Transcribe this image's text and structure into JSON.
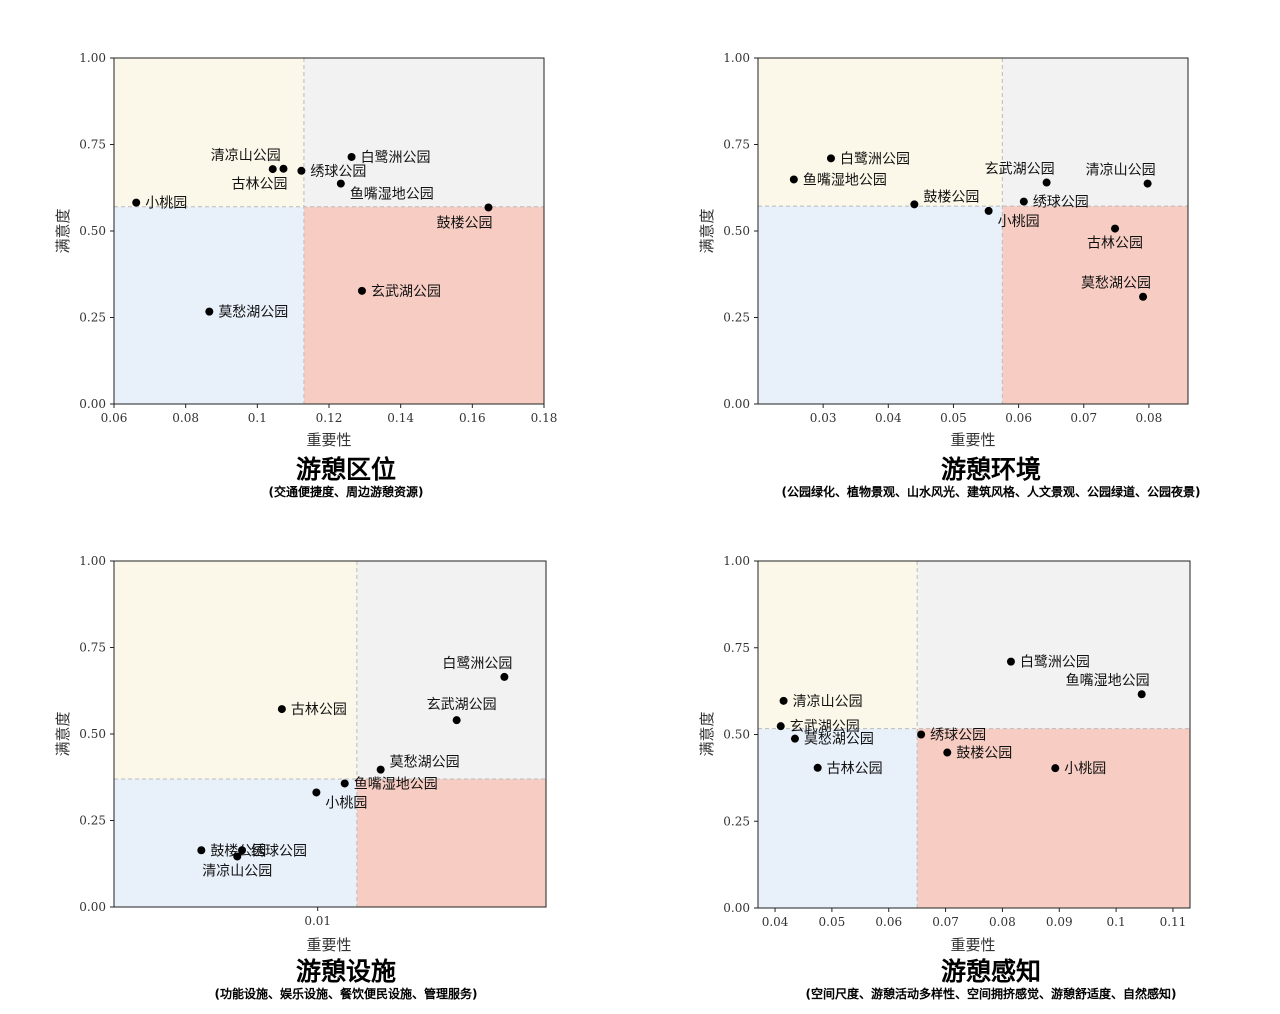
{
  "colors": {
    "q_top_left": "#fcf8e9",
    "q_top_right": "#f2f2f2",
    "q_bottom_left": "#e8f0fa",
    "q_bottom_right": "#f7cdc3",
    "point": "#000000",
    "divider": "#bbbbbb"
  },
  "chart_data": [
    {
      "type": "scatter",
      "title": "游憩区位",
      "subtitle": "(交通便捷度、周边游憩资源)",
      "xlabel": "重要性",
      "ylabel": "满意度",
      "xlim": [
        0.06,
        0.18
      ],
      "ylim": [
        0,
        1
      ],
      "xticks": [
        0.06,
        0.08,
        0.1,
        0.12,
        0.14,
        0.16,
        0.18
      ],
      "xtick_labels": [
        "0.06",
        "0.08",
        "0.1",
        "0.12",
        "0.14",
        "0.16",
        "0.18"
      ],
      "yticks": [
        0,
        0.25,
        0.5,
        0.75,
        1
      ],
      "ytick_labels": [
        "0.00",
        "0.25",
        "0.50",
        "0.75",
        "1.00"
      ],
      "x_split": 0.113,
      "y_split": 0.57,
      "points": [
        {
          "name": "小桃园",
          "x": 0.0662,
          "y": 0.582,
          "label_pos": "right"
        },
        {
          "name": "清凉山公园",
          "x": 0.1043,
          "y": 0.679,
          "label_pos": "above-left"
        },
        {
          "name": "古林公园",
          "x": 0.1073,
          "y": 0.68,
          "label_pos": "below-left"
        },
        {
          "name": "绣球公园",
          "x": 0.1123,
          "y": 0.674,
          "label_pos": "right"
        },
        {
          "name": "白鹭洲公园",
          "x": 0.1263,
          "y": 0.714,
          "label_pos": "right"
        },
        {
          "name": "鱼嘴湿地公园",
          "x": 0.1233,
          "y": 0.637,
          "label_pos": "right-below"
        },
        {
          "name": "鼓楼公园",
          "x": 0.1645,
          "y": 0.568,
          "label_pos": "below-left"
        },
        {
          "name": "玄武湖公园",
          "x": 0.1292,
          "y": 0.327,
          "label_pos": "right"
        },
        {
          "name": "莫愁湖公园",
          "x": 0.0866,
          "y": 0.267,
          "label_pos": "right"
        }
      ]
    },
    {
      "type": "scatter",
      "title": "游憩环境",
      "subtitle": "(公园绿化、植物景观、山水风光、建筑风格、人文景观、公园绿道、公园夜景)",
      "xlabel": "重要性",
      "ylabel": "满意度",
      "xlim": [
        0.02,
        0.086
      ],
      "ylim": [
        0,
        1
      ],
      "xticks": [
        0.03,
        0.04,
        0.05,
        0.06,
        0.07,
        0.08
      ],
      "xtick_labels": [
        "0.03",
        "0.04",
        "0.05",
        "0.06",
        "0.07",
        "0.08"
      ],
      "yticks": [
        0,
        0.25,
        0.5,
        0.75,
        1
      ],
      "ytick_labels": [
        "0.00",
        "0.25",
        "0.50",
        "0.75",
        "1.00"
      ],
      "x_split": 0.0575,
      "y_split": 0.572,
      "points": [
        {
          "name": "白鹭洲公园",
          "x": 0.0312,
          "y": 0.71,
          "label_pos": "right"
        },
        {
          "name": "鱼嘴湿地公园",
          "x": 0.0255,
          "y": 0.649,
          "label_pos": "right"
        },
        {
          "name": "鼓楼公园",
          "x": 0.044,
          "y": 0.577,
          "label_pos": "right-above"
        },
        {
          "name": "小桃园",
          "x": 0.0554,
          "y": 0.558,
          "label_pos": "right-below"
        },
        {
          "name": "玄武湖公园",
          "x": 0.0643,
          "y": 0.64,
          "label_pos": "above-left"
        },
        {
          "name": "绣球公园",
          "x": 0.0608,
          "y": 0.585,
          "label_pos": "right"
        },
        {
          "name": "清凉山公园",
          "x": 0.0798,
          "y": 0.637,
          "label_pos": "above-left"
        },
        {
          "name": "古林公园",
          "x": 0.0748,
          "y": 0.507,
          "label_pos": "below"
        },
        {
          "name": "莫愁湖公园",
          "x": 0.0791,
          "y": 0.31,
          "label_pos": "above-left"
        }
      ]
    },
    {
      "type": "scatter",
      "title": "游憩设施",
      "subtitle": "(功能设施、娱乐设施、餐饮便民设施、管理服务)",
      "xlabel": "重要性",
      "ylabel": "满意度",
      "xscale": "log",
      "xlim": [
        0.0021,
        0.0575
      ],
      "ylim": [
        0,
        1
      ],
      "xticks": [
        0.01
      ],
      "xtick_labels": [
        "0.01"
      ],
      "yticks": [
        0,
        0.25,
        0.5,
        0.75,
        1
      ],
      "ytick_labels": [
        "0.00",
        "0.25",
        "0.50",
        "0.75",
        "1.00"
      ],
      "x_split": 0.0135,
      "y_split": 0.37,
      "points": [
        {
          "name": "白鹭洲公园",
          "x": 0.0418,
          "y": 0.665,
          "label_pos": "above-left"
        },
        {
          "name": "古林公园",
          "x": 0.0076,
          "y": 0.572,
          "label_pos": "right"
        },
        {
          "name": "玄武湖公园",
          "x": 0.029,
          "y": 0.54,
          "label_pos": "above"
        },
        {
          "name": "莫愁湖公园",
          "x": 0.0162,
          "y": 0.397,
          "label_pos": "right-above"
        },
        {
          "name": "鱼嘴湿地公园",
          "x": 0.0123,
          "y": 0.357,
          "label_pos": "right"
        },
        {
          "name": "小桃园",
          "x": 0.0099,
          "y": 0.331,
          "label_pos": "right-below"
        },
        {
          "name": "鼓楼公园",
          "x": 0.0041,
          "y": 0.164,
          "label_pos": "right"
        },
        {
          "name": "绣球公园",
          "x": 0.0056,
          "y": 0.164,
          "label_pos": "right"
        },
        {
          "name": "清凉山公园",
          "x": 0.0054,
          "y": 0.146,
          "label_pos": "below"
        }
      ]
    },
    {
      "type": "scatter",
      "title": "游憩感知",
      "subtitle": "(空间尺度、游憩活动多样性、空间拥挤感觉、游憩舒适度、自然感知)",
      "xlabel": "重要性",
      "ylabel": "满意度",
      "xlim": [
        0.037,
        0.113
      ],
      "ylim": [
        0,
        1
      ],
      "xticks": [
        0.04,
        0.05,
        0.06,
        0.07,
        0.08,
        0.09,
        0.1,
        0.11
      ],
      "xtick_labels": [
        "0.04",
        "0.05",
        "0.06",
        "0.07",
        "0.08",
        "0.09",
        "0.1",
        "0.11"
      ],
      "yticks": [
        0,
        0.25,
        0.5,
        0.75,
        1
      ],
      "ytick_labels": [
        "0.00",
        "0.25",
        "0.50",
        "0.75",
        "1.00"
      ],
      "x_split": 0.065,
      "y_split": 0.517,
      "points": [
        {
          "name": "白鹭洲公园",
          "x": 0.0815,
          "y": 0.71,
          "label_pos": "right"
        },
        {
          "name": "鱼嘴湿地公园",
          "x": 0.1045,
          "y": 0.616,
          "label_pos": "above-left"
        },
        {
          "name": "清凉山公园",
          "x": 0.0415,
          "y": 0.597,
          "label_pos": "right"
        },
        {
          "name": "玄武湖公园",
          "x": 0.041,
          "y": 0.524,
          "label_pos": "right"
        },
        {
          "name": "莫愁湖公园",
          "x": 0.0435,
          "y": 0.488,
          "label_pos": "right"
        },
        {
          "name": "古林公园",
          "x": 0.0475,
          "y": 0.404,
          "label_pos": "right"
        },
        {
          "name": "绣球公园",
          "x": 0.0657,
          "y": 0.5,
          "label_pos": "right"
        },
        {
          "name": "鼓楼公园",
          "x": 0.0703,
          "y": 0.448,
          "label_pos": "right"
        },
        {
          "name": "小桃园",
          "x": 0.0893,
          "y": 0.403,
          "label_pos": "right"
        }
      ]
    }
  ]
}
